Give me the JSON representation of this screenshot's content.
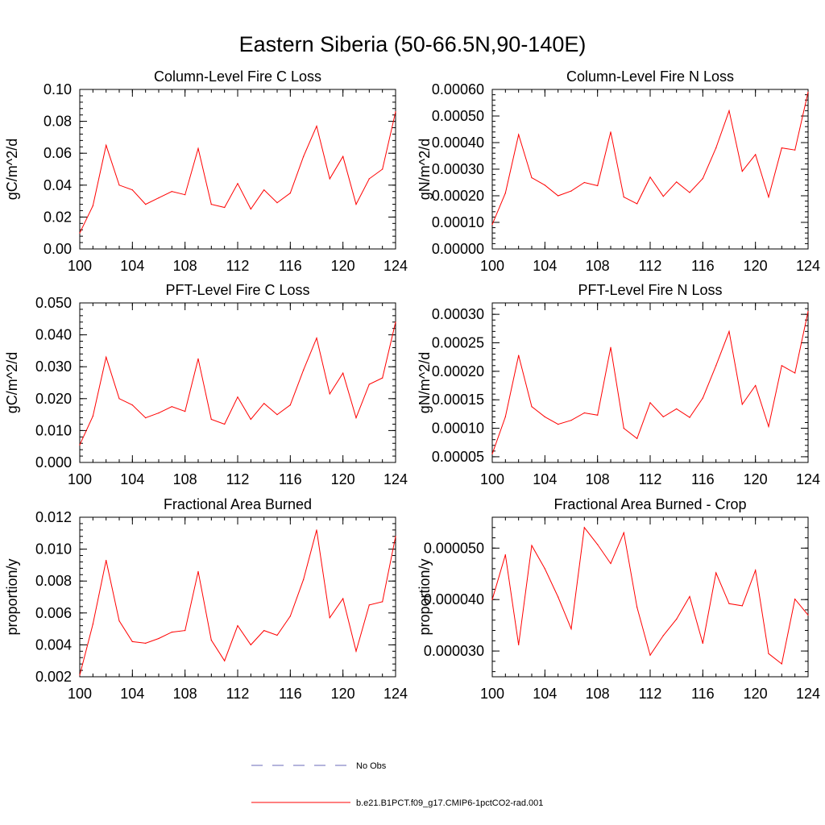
{
  "title": "Eastern Siberia (50-66.5N,90-140E)",
  "colors": {
    "model": "#ff0000",
    "obs": "#6a6ab8",
    "axis": "#000000"
  },
  "legend": {
    "obs_label": "No Obs",
    "model_label": "b.e21.B1PCT.f09_g17.CMIP6-1pctCO2-rad.001"
  },
  "chart_data": [
    {
      "type": "line",
      "title": "Column-Level Fire C Loss",
      "ylabel": "gC/m^2/d",
      "xlim": [
        100,
        124
      ],
      "ylim": [
        0,
        0.1
      ],
      "x_ticks": [
        100,
        104,
        108,
        112,
        116,
        120,
        124
      ],
      "x_tick_labels": [
        "100",
        "104",
        "108",
        "112",
        "116",
        "120",
        "124"
      ],
      "y_ticks": [
        0,
        0.02,
        0.04,
        0.06,
        0.08,
        0.1
      ],
      "y_tick_labels": [
        "0.00",
        "0.02",
        "0.04",
        "0.06",
        "0.08",
        "0.10"
      ],
      "x": [
        100,
        101,
        102,
        103,
        104,
        105,
        106,
        107,
        108,
        109,
        110,
        111,
        112,
        113,
        114,
        115,
        116,
        117,
        118,
        119,
        120,
        121,
        122,
        123,
        124
      ],
      "series": [
        {
          "values": [
            0.01,
            0.027,
            0.065,
            0.04,
            0.037,
            0.028,
            0.032,
            0.036,
            0.034,
            0.063,
            0.028,
            0.026,
            0.041,
            0.025,
            0.037,
            0.029,
            0.035,
            0.058,
            0.077,
            0.044,
            0.058,
            0.028,
            0.044,
            0.05,
            0.086
          ]
        }
      ]
    },
    {
      "type": "line",
      "title": "Column-Level Fire N Loss",
      "ylabel": "gN/m^2/d",
      "xlim": [
        100,
        124
      ],
      "ylim": [
        0,
        0.0006
      ],
      "x_ticks": [
        100,
        104,
        108,
        112,
        116,
        120,
        124
      ],
      "x_tick_labels": [
        "100",
        "104",
        "108",
        "112",
        "116",
        "120",
        "124"
      ],
      "y_ticks": [
        0,
        0.0001,
        0.0002,
        0.0003,
        0.0004,
        0.0005,
        0.0006
      ],
      "y_tick_labels": [
        "0.00000",
        "0.00010",
        "0.00020",
        "0.00030",
        "0.00040",
        "0.00050",
        "0.00060"
      ],
      "x": [
        100,
        101,
        102,
        103,
        104,
        105,
        106,
        107,
        108,
        109,
        110,
        111,
        112,
        113,
        114,
        115,
        116,
        117,
        118,
        119,
        120,
        121,
        122,
        123,
        124
      ],
      "series": [
        {
          "values": [
            9.2e-05,
            0.00021,
            0.00043,
            0.000268,
            0.00024,
            0.0002,
            0.000218,
            0.00025,
            0.000238,
            0.00044,
            0.000195,
            0.00017,
            0.00027,
            0.000198,
            0.000252,
            0.000212,
            0.000265,
            0.00038,
            0.00052,
            0.000292,
            0.000355,
            0.000195,
            0.00038,
            0.000372,
            0.00059
          ]
        }
      ]
    },
    {
      "type": "line",
      "title": "PFT-Level Fire C Loss",
      "ylabel": "gC/m^2/d",
      "xlim": [
        100,
        124
      ],
      "ylim": [
        0,
        0.05
      ],
      "x_ticks": [
        100,
        104,
        108,
        112,
        116,
        120,
        124
      ],
      "x_tick_labels": [
        "100",
        "104",
        "108",
        "112",
        "116",
        "120",
        "124"
      ],
      "y_ticks": [
        0,
        0.01,
        0.02,
        0.03,
        0.04,
        0.05
      ],
      "y_tick_labels": [
        "0.000",
        "0.010",
        "0.020",
        "0.030",
        "0.040",
        "0.050"
      ],
      "x": [
        100,
        101,
        102,
        103,
        104,
        105,
        106,
        107,
        108,
        109,
        110,
        111,
        112,
        113,
        114,
        115,
        116,
        117,
        118,
        119,
        120,
        121,
        122,
        123,
        124
      ],
      "series": [
        {
          "values": [
            0.0055,
            0.0145,
            0.033,
            0.02,
            0.018,
            0.014,
            0.0155,
            0.0175,
            0.016,
            0.0325,
            0.0135,
            0.012,
            0.0205,
            0.0135,
            0.0185,
            0.015,
            0.018,
            0.029,
            0.039,
            0.0215,
            0.028,
            0.014,
            0.0245,
            0.0265,
            0.044
          ]
        }
      ]
    },
    {
      "type": "line",
      "title": "PFT-Level Fire N Loss",
      "ylabel": "gN/m^2/d",
      "xlim": [
        100,
        124
      ],
      "ylim": [
        4e-05,
        0.00032
      ],
      "x_ticks": [
        100,
        104,
        108,
        112,
        116,
        120,
        124
      ],
      "x_tick_labels": [
        "100",
        "104",
        "108",
        "112",
        "116",
        "120",
        "124"
      ],
      "y_ticks": [
        5e-05,
        0.0001,
        0.00015,
        0.0002,
        0.00025,
        0.0003
      ],
      "y_tick_labels": [
        "0.00005",
        "0.00010",
        "0.00015",
        "0.00020",
        "0.00025",
        "0.00030"
      ],
      "x": [
        100,
        101,
        102,
        103,
        104,
        105,
        106,
        107,
        108,
        109,
        110,
        111,
        112,
        113,
        114,
        115,
        116,
        117,
        118,
        119,
        120,
        121,
        122,
        123,
        124
      ],
      "series": [
        {
          "values": [
            5.5e-05,
            0.00012,
            0.000228,
            0.000138,
            0.00012,
            0.000107,
            0.000114,
            0.000127,
            0.000123,
            0.000242,
            0.0001,
            8.2e-05,
            0.000145,
            0.00012,
            0.000134,
            0.000119,
            0.000153,
            0.00021,
            0.00027,
            0.000142,
            0.000175,
            0.000103,
            0.00021,
            0.000197,
            0.000305
          ]
        }
      ]
    },
    {
      "type": "line",
      "title": "Fractional Area Burned",
      "ylabel": "proportion/y",
      "xlim": [
        100,
        124
      ],
      "ylim": [
        0.002,
        0.012
      ],
      "x_ticks": [
        100,
        104,
        108,
        112,
        116,
        120,
        124
      ],
      "x_tick_labels": [
        "100",
        "104",
        "108",
        "112",
        "116",
        "120",
        "124"
      ],
      "y_ticks": [
        0.002,
        0.004,
        0.006,
        0.008,
        0.01,
        0.012
      ],
      "y_tick_labels": [
        "0.002",
        "0.004",
        "0.006",
        "0.008",
        "0.010",
        "0.012"
      ],
      "x": [
        100,
        101,
        102,
        103,
        104,
        105,
        106,
        107,
        108,
        109,
        110,
        111,
        112,
        113,
        114,
        115,
        116,
        117,
        118,
        119,
        120,
        121,
        122,
        123,
        124
      ],
      "series": [
        {
          "values": [
            0.0021,
            0.0053,
            0.0093,
            0.0055,
            0.0042,
            0.0041,
            0.0044,
            0.0048,
            0.0049,
            0.0086,
            0.0043,
            0.003,
            0.0052,
            0.004,
            0.0049,
            0.0046,
            0.0058,
            0.0081,
            0.0112,
            0.0057,
            0.0069,
            0.0036,
            0.0065,
            0.0067,
            0.0108
          ]
        }
      ]
    },
    {
      "type": "line",
      "title": "Fractional Area Burned - Crop",
      "ylabel": "proportion/y",
      "xlim": [
        100,
        124
      ],
      "ylim": [
        2.5e-05,
        5.6e-05
      ],
      "x_ticks": [
        100,
        104,
        108,
        112,
        116,
        120,
        124
      ],
      "x_tick_labels": [
        "100",
        "104",
        "108",
        "112",
        "116",
        "120",
        "124"
      ],
      "y_ticks": [
        3e-05,
        4e-05,
        5e-05
      ],
      "y_tick_labels": [
        "0.000030",
        "0.000040",
        "0.000050"
      ],
      "x": [
        100,
        101,
        102,
        103,
        104,
        105,
        106,
        107,
        108,
        109,
        110,
        111,
        112,
        113,
        114,
        115,
        116,
        117,
        118,
        119,
        120,
        121,
        122,
        123,
        124
      ],
      "series": [
        {
          "values": [
            4e-05,
            4.87e-05,
            3.12e-05,
            5.05e-05,
            4.6e-05,
            4.05e-05,
            3.43e-05,
            5.4e-05,
            5.07e-05,
            4.7e-05,
            5.3e-05,
            3.85e-05,
            2.92e-05,
            3.3e-05,
            3.62e-05,
            4.06e-05,
            3.15e-05,
            4.52e-05,
            3.92e-05,
            3.88e-05,
            4.57e-05,
            2.95e-05,
            2.75e-05,
            4.01e-05,
            3.7e-05
          ]
        }
      ]
    }
  ]
}
